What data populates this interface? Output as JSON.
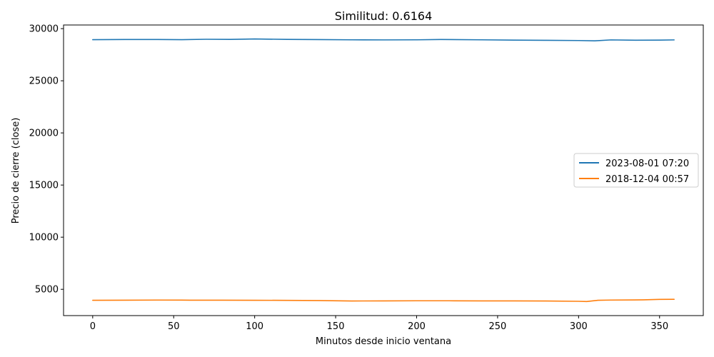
{
  "chart_data": {
    "type": "line",
    "title": "Similitud: 0.6164",
    "xlabel": "Minutos desde inicio ventana",
    "ylabel": "Precio de cierre (close)",
    "xlim": [
      -18,
      377
    ],
    "ylim": [
      2480,
      30350
    ],
    "xticks": [
      0,
      50,
      100,
      150,
      200,
      250,
      300,
      350
    ],
    "yticks": [
      5000,
      10000,
      15000,
      20000,
      25000,
      30000
    ],
    "grid": false,
    "legend_position": "center-right",
    "series": [
      {
        "name": "2023-08-01 07:20",
        "color": "#1f77b4",
        "x": [
          0,
          20,
          40,
          55,
          70,
          85,
          100,
          120,
          140,
          160,
          180,
          200,
          215,
          240,
          260,
          280,
          300,
          310,
          320,
          335,
          350,
          359
        ],
        "y": [
          28940,
          28960,
          28960,
          28940,
          28980,
          28970,
          29010,
          28970,
          28950,
          28930,
          28920,
          28930,
          28960,
          28930,
          28900,
          28880,
          28860,
          28830,
          28920,
          28890,
          28900,
          28920
        ]
      },
      {
        "name": "2018-12-04 00:57",
        "color": "#ff7f0e",
        "x": [
          0,
          20,
          40,
          60,
          80,
          100,
          120,
          140,
          160,
          180,
          200,
          220,
          240,
          260,
          280,
          300,
          305,
          312,
          320,
          340,
          350,
          359
        ],
        "y": [
          3950,
          3960,
          3970,
          3960,
          3960,
          3950,
          3940,
          3920,
          3880,
          3890,
          3900,
          3900,
          3890,
          3890,
          3880,
          3850,
          3830,
          3950,
          3970,
          3990,
          4030,
          4040
        ]
      }
    ]
  }
}
